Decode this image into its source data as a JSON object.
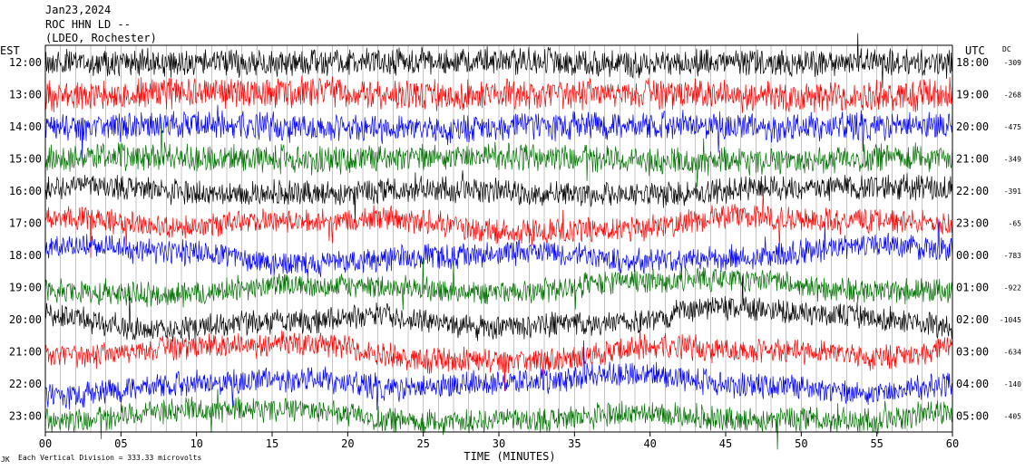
{
  "header": {
    "date": "Jan23,2024",
    "station": "ROC HHN LD --",
    "network": "(LDEO, Rochester)"
  },
  "left_tz": "EST",
  "right_tz": "UTC",
  "dc_header": "DC",
  "footer": {
    "mark": "JK",
    "scale_note": "Each Vertical Division =  333.33 microvolts"
  },
  "colors": {
    "trace_cycle": [
      "#000000",
      "#ff0000",
      "#0000ff",
      "#007000"
    ],
    "grid": "#888888",
    "frame": "#000000"
  },
  "chart_data": {
    "type": "line",
    "title": "Jan23,2024",
    "xlabel": "TIME (MINUTES)",
    "ylabel": "",
    "xlim": [
      0,
      60
    ],
    "x_ticks": [
      "00",
      "05",
      "10",
      "15",
      "20",
      "25",
      "30",
      "35",
      "40",
      "45",
      "50",
      "55",
      "60"
    ],
    "x_tick_values": [
      0,
      5,
      10,
      15,
      20,
      25,
      30,
      35,
      40,
      45,
      50,
      55,
      60
    ],
    "grid": "vertical, every minute",
    "series": [
      {
        "est": "12:00",
        "utc": "18:00",
        "dc": "-309",
        "color": "#000000",
        "amplitude": 0.5,
        "drift": 0.05
      },
      {
        "est": "13:00",
        "utc": "19:00",
        "dc": "-268",
        "color": "#ff0000",
        "amplitude": 0.55,
        "drift": 0.08
      },
      {
        "est": "14:00",
        "utc": "20:00",
        "dc": "-475",
        "color": "#0000ff",
        "amplitude": 0.5,
        "drift": 0.1
      },
      {
        "est": "15:00",
        "utc": "21:00",
        "dc": "-349",
        "color": "#007000",
        "amplitude": 0.5,
        "drift": 0.1
      },
      {
        "est": "16:00",
        "utc": "22:00",
        "dc": "-391",
        "color": "#000000",
        "amplitude": 0.45,
        "drift": 0.15
      },
      {
        "est": "17:00",
        "utc": "23:00",
        "dc": "-65",
        "color": "#ff0000",
        "amplitude": 0.45,
        "drift": 0.3
      },
      {
        "est": "18:00",
        "utc": "00:00",
        "dc": "-783",
        "color": "#0000ff",
        "amplitude": 0.45,
        "drift": 0.3
      },
      {
        "est": "19:00",
        "utc": "01:00",
        "dc": "-922",
        "color": "#007000",
        "amplitude": 0.45,
        "drift": 0.25
      },
      {
        "est": "20:00",
        "utc": "02:00",
        "dc": "-1045",
        "color": "#000000",
        "amplitude": 0.45,
        "drift": 0.35
      },
      {
        "est": "21:00",
        "utc": "03:00",
        "dc": "-634",
        "color": "#ff0000",
        "amplitude": 0.45,
        "drift": 0.35
      },
      {
        "est": "22:00",
        "utc": "04:00",
        "dc": "-140",
        "color": "#0000ff",
        "amplitude": 0.45,
        "drift": 0.3
      },
      {
        "est": "23:00",
        "utc": "05:00",
        "dc": "-405",
        "color": "#007000",
        "amplitude": 0.45,
        "drift": 0.25
      }
    ]
  }
}
